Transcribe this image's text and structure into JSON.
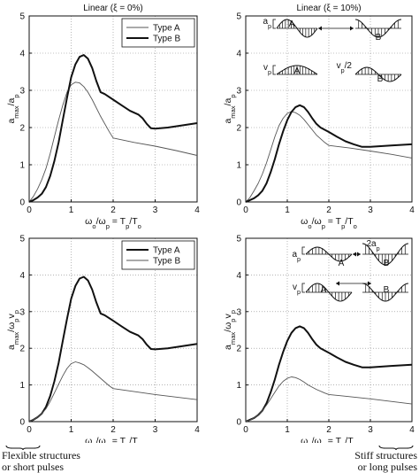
{
  "chart_data": [
    {
      "type": "line",
      "title": "Linear (ξ = 0%)",
      "xlabel": "ωo/ωp = Tp/To",
      "ylabel": "amax/ap",
      "xlim": [
        0,
        4
      ],
      "ylim": [
        0,
        5
      ],
      "xticks": [
        "0",
        "1",
        "2",
        "3",
        "4"
      ],
      "yticks": [
        "0",
        "1",
        "2",
        "3",
        "4",
        "5"
      ],
      "grid": true,
      "legend": "top-right",
      "series": [
        {
          "name": "Type A",
          "style": "thin",
          "x": [
            0,
            0.1,
            0.2,
            0.3,
            0.4,
            0.5,
            0.6,
            0.7,
            0.8,
            0.9,
            1.0,
            1.1,
            1.2,
            1.3,
            1.4,
            1.5,
            1.7,
            1.9,
            2.0,
            2.5,
            3.0,
            3.5,
            4.0
          ],
          "y": [
            0,
            0.15,
            0.35,
            0.6,
            0.9,
            1.3,
            1.75,
            2.2,
            2.6,
            2.95,
            3.15,
            3.22,
            3.2,
            3.1,
            2.95,
            2.75,
            2.3,
            1.9,
            1.72,
            1.6,
            1.5,
            1.38,
            1.25
          ]
        },
        {
          "name": "Type B",
          "style": "thick",
          "x": [
            0,
            0.1,
            0.2,
            0.3,
            0.4,
            0.5,
            0.6,
            0.7,
            0.8,
            0.9,
            1.0,
            1.1,
            1.2,
            1.3,
            1.4,
            1.5,
            1.6,
            1.7,
            1.8,
            2.0,
            2.2,
            2.4,
            2.6,
            2.7,
            2.8,
            2.9,
            3.0,
            3.3,
            3.6,
            4.0
          ],
          "y": [
            0,
            0.05,
            0.12,
            0.22,
            0.4,
            0.7,
            1.1,
            1.6,
            2.2,
            2.8,
            3.35,
            3.7,
            3.9,
            3.95,
            3.85,
            3.6,
            3.25,
            2.95,
            2.9,
            2.75,
            2.6,
            2.45,
            2.35,
            2.25,
            2.1,
            1.98,
            1.97,
            2.0,
            2.05,
            2.12
          ]
        }
      ]
    },
    {
      "type": "line",
      "title": "Linear (ξ = 10%)",
      "xlabel": "ωo/ωp = Tp/To",
      "ylabel": "amax/ap",
      "xlim": [
        0,
        4
      ],
      "ylim": [
        0,
        5
      ],
      "xticks": [
        "0",
        "1",
        "2",
        "3",
        "4"
      ],
      "yticks": [
        "0",
        "1",
        "2",
        "3",
        "4",
        "5"
      ],
      "grid": true,
      "series": [
        {
          "name": "Type A",
          "style": "thin",
          "x": [
            0,
            0.1,
            0.2,
            0.3,
            0.4,
            0.5,
            0.6,
            0.7,
            0.8,
            0.9,
            1.0,
            1.1,
            1.2,
            1.3,
            1.4,
            1.5,
            1.7,
            1.9,
            2.0,
            2.5,
            3.0,
            3.5,
            4.0
          ],
          "y": [
            0,
            0.12,
            0.3,
            0.5,
            0.75,
            1.05,
            1.4,
            1.75,
            2.05,
            2.25,
            2.38,
            2.43,
            2.4,
            2.33,
            2.22,
            2.08,
            1.8,
            1.6,
            1.52,
            1.45,
            1.37,
            1.28,
            1.18
          ]
        },
        {
          "name": "Type B",
          "style": "thick",
          "x": [
            0,
            0.1,
            0.2,
            0.3,
            0.4,
            0.5,
            0.6,
            0.7,
            0.8,
            0.9,
            1.0,
            1.1,
            1.2,
            1.3,
            1.4,
            1.5,
            1.6,
            1.7,
            1.8,
            2.0,
            2.2,
            2.4,
            2.6,
            2.8,
            3.0,
            3.5,
            4.0
          ],
          "y": [
            0,
            0.05,
            0.1,
            0.18,
            0.3,
            0.5,
            0.8,
            1.15,
            1.55,
            1.9,
            2.2,
            2.42,
            2.55,
            2.6,
            2.55,
            2.42,
            2.25,
            2.1,
            2.0,
            1.88,
            1.75,
            1.63,
            1.55,
            1.48,
            1.48,
            1.52,
            1.55
          ]
        }
      ]
    },
    {
      "type": "line",
      "title": "",
      "xlabel": "ωo/ωp = Tp/To",
      "ylabel": "amax/ωpvp",
      "xlim": [
        0,
        4
      ],
      "ylim": [
        0,
        5
      ],
      "xticks": [
        "0",
        "1",
        "2",
        "3",
        "4"
      ],
      "yticks": [
        "0",
        "1",
        "2",
        "3",
        "4",
        "5"
      ],
      "grid": true,
      "legend": "top-right",
      "series": [
        {
          "name": "Type A",
          "style": "thick",
          "x": [
            0,
            0.1,
            0.2,
            0.3,
            0.4,
            0.5,
            0.6,
            0.7,
            0.8,
            0.9,
            1.0,
            1.1,
            1.2,
            1.3,
            1.4,
            1.5,
            1.6,
            1.7,
            1.8,
            2.0,
            2.2,
            2.4,
            2.6,
            2.7,
            2.8,
            2.9,
            3.0,
            3.3,
            3.6,
            4.0
          ],
          "y": [
            0,
            0.05,
            0.12,
            0.22,
            0.4,
            0.7,
            1.1,
            1.6,
            2.2,
            2.8,
            3.35,
            3.7,
            3.9,
            3.95,
            3.85,
            3.6,
            3.25,
            2.95,
            2.9,
            2.75,
            2.6,
            2.45,
            2.35,
            2.25,
            2.1,
            1.98,
            1.97,
            2.0,
            2.05,
            2.12
          ]
        },
        {
          "name": "Type B",
          "style": "thin",
          "x": [
            0,
            0.1,
            0.2,
            0.3,
            0.4,
            0.5,
            0.6,
            0.7,
            0.8,
            0.9,
            1.0,
            1.1,
            1.2,
            1.3,
            1.4,
            1.5,
            1.7,
            1.9,
            2.0,
            2.5,
            3.0,
            3.5,
            4.0
          ],
          "y": [
            0,
            0.05,
            0.12,
            0.22,
            0.35,
            0.55,
            0.78,
            1.02,
            1.25,
            1.45,
            1.58,
            1.63,
            1.6,
            1.55,
            1.47,
            1.38,
            1.18,
            0.98,
            0.9,
            0.82,
            0.74,
            0.67,
            0.6
          ]
        }
      ]
    },
    {
      "type": "line",
      "title": "",
      "xlabel": "ωo/ωp = Tp/To",
      "ylabel": "amax/ωpvp",
      "xlim": [
        0,
        4
      ],
      "ylim": [
        0,
        5
      ],
      "xticks": [
        "0",
        "1",
        "2",
        "3",
        "4"
      ],
      "yticks": [
        "0",
        "1",
        "2",
        "3",
        "4",
        "5"
      ],
      "grid": true,
      "series": [
        {
          "name": "Type A",
          "style": "thick",
          "x": [
            0,
            0.1,
            0.2,
            0.3,
            0.4,
            0.5,
            0.6,
            0.7,
            0.8,
            0.9,
            1.0,
            1.1,
            1.2,
            1.3,
            1.4,
            1.5,
            1.6,
            1.7,
            1.8,
            2.0,
            2.2,
            2.4,
            2.6,
            2.8,
            3.0,
            3.5,
            4.0
          ],
          "y": [
            0,
            0.05,
            0.1,
            0.18,
            0.3,
            0.5,
            0.8,
            1.15,
            1.55,
            1.9,
            2.2,
            2.42,
            2.55,
            2.6,
            2.55,
            2.42,
            2.25,
            2.1,
            2.0,
            1.88,
            1.75,
            1.63,
            1.55,
            1.48,
            1.48,
            1.52,
            1.55
          ]
        },
        {
          "name": "Type B",
          "style": "thin",
          "x": [
            0,
            0.1,
            0.2,
            0.3,
            0.4,
            0.5,
            0.6,
            0.7,
            0.8,
            0.9,
            1.0,
            1.1,
            1.2,
            1.3,
            1.4,
            1.5,
            1.7,
            1.9,
            2.0,
            2.5,
            3.0,
            3.5,
            4.0
          ],
          "y": [
            0,
            0.04,
            0.1,
            0.18,
            0.3,
            0.45,
            0.62,
            0.8,
            0.97,
            1.1,
            1.18,
            1.22,
            1.2,
            1.15,
            1.08,
            1.0,
            0.88,
            0.78,
            0.74,
            0.68,
            0.62,
            0.55,
            0.48
          ]
        }
      ]
    }
  ],
  "insets": {
    "accel_label": "ap",
    "accel_label_b": "2ap",
    "vel_label": "vp",
    "vel_half_label": "vp/2",
    "type_a": "A",
    "type_b": "B"
  },
  "captions": {
    "left": [
      "Flexible structures",
      "or short pulses"
    ],
    "right": [
      "Stiff structures",
      "or long pulses"
    ]
  }
}
